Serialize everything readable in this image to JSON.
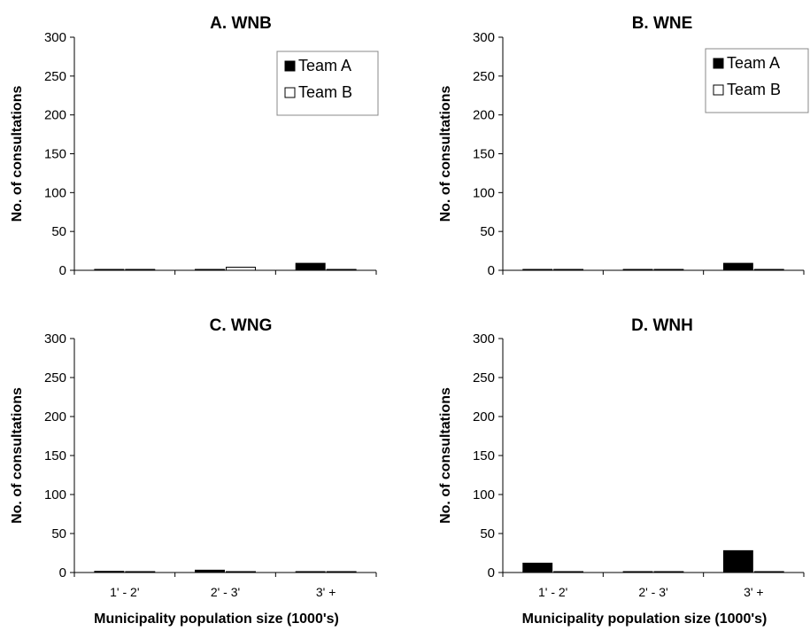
{
  "chart_data": [
    {
      "type": "bar",
      "title": "A.    WNB",
      "ylabel": "No. of consultations",
      "xlabel": "",
      "categories": [
        "",
        "",
        ""
      ],
      "ylim": [
        0,
        300
      ],
      "yticks": [
        0,
        50,
        100,
        150,
        200,
        250,
        300
      ],
      "series": [
        {
          "name": "Team A",
          "values": [
            0.5,
            0.5,
            9
          ],
          "color": "#000000"
        },
        {
          "name": "Team B",
          "values": [
            0.5,
            4,
            0.5
          ],
          "color": "#ffffff"
        }
      ],
      "legend": "top-right"
    },
    {
      "type": "bar",
      "title": "B.    WNE",
      "ylabel": "No. of consultations",
      "xlabel": "",
      "categories": [
        "",
        "",
        ""
      ],
      "ylim": [
        0,
        300
      ],
      "yticks": [
        0,
        50,
        100,
        150,
        200,
        250,
        300
      ],
      "series": [
        {
          "name": "Team A",
          "values": [
            0.5,
            0.5,
            9
          ],
          "color": "#000000"
        },
        {
          "name": "Team B",
          "values": [
            0.5,
            0.5,
            0.5
          ],
          "color": "#ffffff"
        }
      ],
      "legend": "top-right"
    },
    {
      "type": "bar",
      "title": "C.    WNG",
      "ylabel": "No. of consultations",
      "xlabel": "Municipality population size (1000's)",
      "categories": [
        "1' - 2'",
        "2' - 3'",
        "3' +"
      ],
      "ylim": [
        0,
        300
      ],
      "yticks": [
        0,
        50,
        100,
        150,
        200,
        250,
        300
      ],
      "series": [
        {
          "name": "Team A",
          "values": [
            1.5,
            3,
            0.5
          ],
          "color": "#000000"
        },
        {
          "name": "Team B",
          "values": [
            0.5,
            0.5,
            0.5
          ],
          "color": "#ffffff"
        }
      ],
      "legend": "none"
    },
    {
      "type": "bar",
      "title": "D.    WNH",
      "ylabel": "No. of consultations",
      "xlabel": "Municipality population size (1000's)",
      "categories": [
        "1' - 2'",
        "2' - 3'",
        "3' +"
      ],
      "ylim": [
        0,
        300
      ],
      "yticks": [
        0,
        50,
        100,
        150,
        200,
        250,
        300
      ],
      "series": [
        {
          "name": "Team A",
          "values": [
            12,
            0.5,
            28
          ],
          "color": "#000000"
        },
        {
          "name": "Team B",
          "values": [
            0.5,
            0.5,
            0.5
          ],
          "color": "#ffffff"
        }
      ],
      "legend": "none"
    }
  ]
}
